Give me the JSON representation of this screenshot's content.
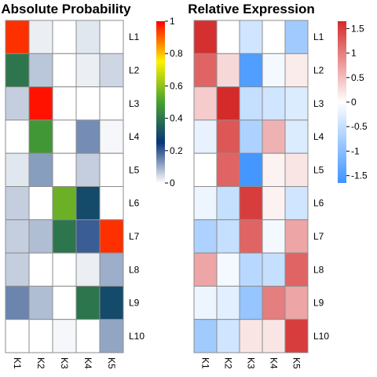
{
  "chart_data": [
    {
      "type": "heatmap",
      "title": "Absolute Probability",
      "columns": [
        "K1",
        "K2",
        "K3",
        "K4",
        "K5"
      ],
      "rows": [
        "L1",
        "L2",
        "L3",
        "L4",
        "L5",
        "L6",
        "L7",
        "L8",
        "L9",
        "L10"
      ],
      "values": [
        [
          0.95,
          0.02,
          0.0,
          0.03,
          0.0
        ],
        [
          0.4,
          0.07,
          0.0,
          0.02,
          0.05
        ],
        [
          0.06,
          0.98,
          0.0,
          0.0,
          0.0
        ],
        [
          0.0,
          0.48,
          0.0,
          0.14,
          0.01
        ],
        [
          0.03,
          0.12,
          0.0,
          0.06,
          0.0
        ],
        [
          0.06,
          0.0,
          0.55,
          0.3,
          0.0
        ],
        [
          0.06,
          0.08,
          0.4,
          0.2,
          0.95
        ],
        [
          0.06,
          0.0,
          0.0,
          0.02,
          0.1
        ],
        [
          0.15,
          0.08,
          0.0,
          0.4,
          0.3
        ],
        [
          0.0,
          0.0,
          0.01,
          0.0,
          0.11
        ]
      ],
      "colorbar": {
        "min": 0,
        "max": 1,
        "ticks": [
          "0",
          "0.2",
          "0.4",
          "0.6",
          "0.8",
          "1"
        ],
        "tick_values": [
          0,
          0.2,
          0.4,
          0.6,
          0.8,
          1
        ]
      }
    },
    {
      "type": "heatmap",
      "title": "Relative Expression",
      "columns": [
        "K1",
        "K2",
        "K3",
        "K4",
        "K5"
      ],
      "rows": [
        "L1",
        "L2",
        "L3",
        "L4",
        "L5",
        "L6",
        "L7",
        "L8",
        "L9",
        "L10"
      ],
      "values": [
        [
          1.6,
          0.0,
          -0.4,
          0.0,
          -0.8
        ],
        [
          1.2,
          0.3,
          -1.5,
          -0.1,
          0.15
        ],
        [
          0.4,
          1.7,
          -0.5,
          -0.4,
          -0.3
        ],
        [
          -0.2,
          1.3,
          -0.7,
          0.6,
          -0.3
        ],
        [
          0.0,
          1.2,
          -1.6,
          0.1,
          0.2
        ],
        [
          -0.15,
          -0.5,
          1.5,
          0.1,
          -0.4
        ],
        [
          -0.7,
          -0.5,
          1.2,
          -0.1,
          0.7
        ],
        [
          0.7,
          -0.1,
          -0.6,
          -0.5,
          1.2
        ],
        [
          -0.15,
          -0.25,
          -0.9,
          1.0,
          0.7
        ],
        [
          -0.8,
          -0.4,
          0.2,
          0.2,
          1.5
        ]
      ],
      "colorbar": {
        "min": -1.65,
        "max": 1.65,
        "ticks": [
          "1.5",
          "1",
          "0.5",
          "0",
          "-0.5",
          "-1",
          "-1.5"
        ],
        "tick_values": [
          1.5,
          1,
          0.5,
          0,
          -0.5,
          -1,
          -1.5
        ]
      }
    }
  ],
  "colors": {
    "abs_scale": [
      "#ffffff",
      "#083479",
      "#46a030",
      "#fef200",
      "#ff0000"
    ],
    "rel_scale": [
      "#3e94ff",
      "#ffffff",
      "#d42a2a"
    ],
    "grid": "#8c8c8c",
    "axis": "#000000"
  }
}
